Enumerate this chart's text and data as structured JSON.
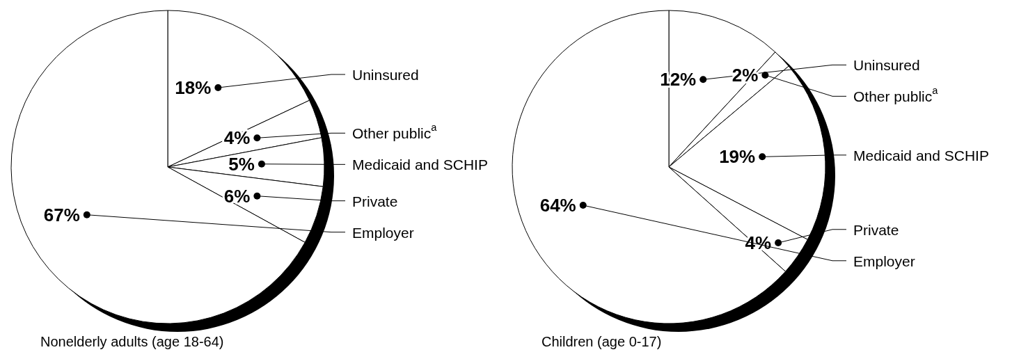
{
  "chart_data": [
    {
      "type": "pie",
      "title": "Nonelderly adults (age 18-64)",
      "categories": [
        "Uninsured",
        "Other public$^{a}$",
        "Medicaid and SCHIP",
        "Private",
        "Employer"
      ],
      "values": [
        18,
        4,
        5,
        6,
        67
      ],
      "colors": [
        "#ffffff",
        "#ffffff",
        "#ffffff",
        "#ffffff",
        "#ffffff"
      ],
      "value_labels": [
        "18%",
        "4%",
        "5%",
        "6%",
        "67%"
      ]
    },
    {
      "type": "pie",
      "title": "Children (age 0-17)",
      "categories": [
        "Uninsured",
        "Other public$^{a}$",
        "Medicaid and SCHIP",
        "Private",
        "Employer"
      ],
      "values": [
        12,
        2,
        19,
        4,
        64
      ],
      "colors": [
        "#ffffff",
        "#ffffff",
        "#ffffff",
        "#ffffff",
        "#ffffff"
      ],
      "value_labels": [
        "12%",
        "2%",
        "19%",
        "4%",
        "64%"
      ]
    }
  ]
}
